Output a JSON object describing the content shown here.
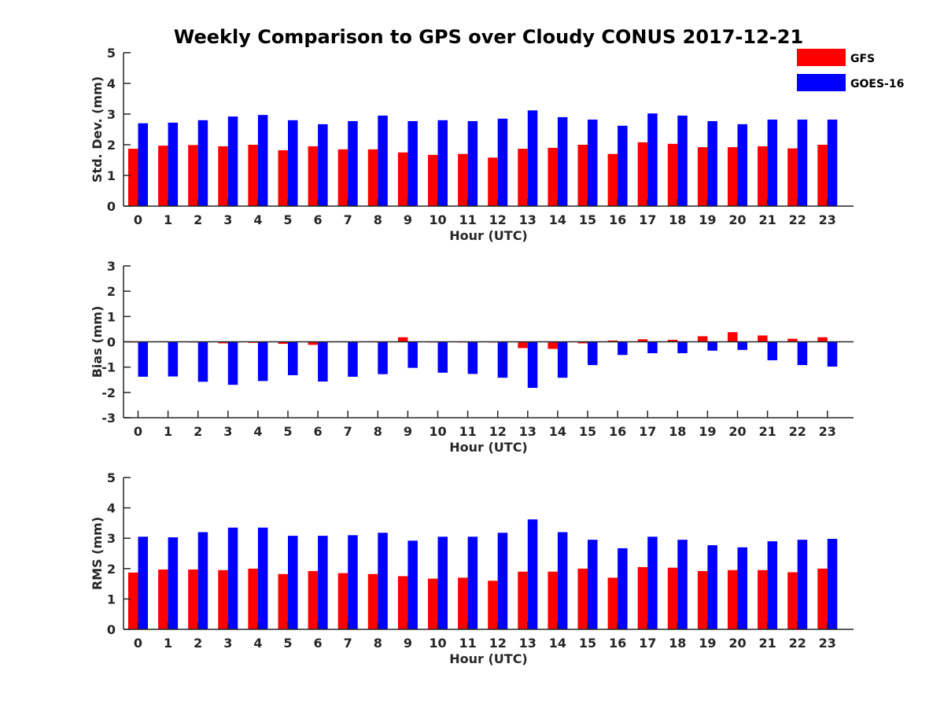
{
  "figure": {
    "title": "Weekly Comparison to GPS over Cloudy CONUS 2017-12-21"
  },
  "legend": {
    "placement": "top-right",
    "items": [
      {
        "label": "GFS",
        "color": "#ff0000"
      },
      {
        "label": "GOES-16",
        "color": "#0000ff"
      }
    ]
  },
  "chart_data": [
    {
      "type": "bar",
      "xlabel": "Hour (UTC)",
      "ylabel": "Std. Dev. (mm)",
      "ylim": [
        0,
        5
      ],
      "yticks": [
        0,
        1,
        2,
        3,
        4,
        5
      ],
      "grid": false,
      "categories": [
        "0",
        "1",
        "2",
        "3",
        "4",
        "5",
        "6",
        "7",
        "8",
        "9",
        "10",
        "11",
        "12",
        "13",
        "14",
        "15",
        "16",
        "17",
        "18",
        "19",
        "20",
        "21",
        "22",
        "23"
      ],
      "series": [
        {
          "name": "GFS",
          "color": "#ff0000",
          "values": [
            1.87,
            1.97,
            1.99,
            1.95,
            2.0,
            1.82,
            1.95,
            1.85,
            1.85,
            1.75,
            1.67,
            1.7,
            1.58,
            1.87,
            1.9,
            2.0,
            1.7,
            2.08,
            2.03,
            1.92,
            1.92,
            1.95,
            1.88,
            2.0
          ]
        },
        {
          "name": "GOES-16",
          "color": "#0000ff",
          "values": [
            2.7,
            2.72,
            2.8,
            2.92,
            2.97,
            2.8,
            2.67,
            2.77,
            2.95,
            2.77,
            2.8,
            2.77,
            2.85,
            3.12,
            2.9,
            2.82,
            2.62,
            3.02,
            2.95,
            2.77,
            2.67,
            2.82,
            2.82,
            2.82
          ]
        }
      ]
    },
    {
      "type": "bar",
      "xlabel": "Hour (UTC)",
      "ylabel": "Bias (mm)",
      "ylim": [
        -3,
        3
      ],
      "yticks": [
        -3,
        -2,
        -1,
        0,
        1,
        2,
        3
      ],
      "grid": false,
      "zero_line": true,
      "categories": [
        "0",
        "1",
        "2",
        "3",
        "4",
        "5",
        "6",
        "7",
        "8",
        "9",
        "10",
        "11",
        "12",
        "13",
        "14",
        "15",
        "16",
        "17",
        "18",
        "19",
        "20",
        "21",
        "22",
        "23"
      ],
      "series": [
        {
          "name": "GFS",
          "color": "#ff0000",
          "values": [
            -0.02,
            0.02,
            -0.02,
            -0.06,
            -0.04,
            -0.08,
            -0.12,
            0.02,
            0.02,
            0.18,
            0.0,
            0.0,
            0.0,
            -0.25,
            -0.28,
            -0.06,
            0.05,
            0.1,
            0.08,
            0.22,
            0.38,
            0.25,
            0.12,
            0.18
          ]
        },
        {
          "name": "GOES-16",
          "color": "#0000ff",
          "values": [
            -1.38,
            -1.37,
            -1.58,
            -1.7,
            -1.55,
            -1.32,
            -1.57,
            -1.38,
            -1.28,
            -1.03,
            -1.22,
            -1.27,
            -1.42,
            -1.82,
            -1.42,
            -0.92,
            -0.52,
            -0.45,
            -0.45,
            -0.35,
            -0.32,
            -0.73,
            -0.92,
            -0.98
          ]
        }
      ]
    },
    {
      "type": "bar",
      "xlabel": "Hour (UTC)",
      "ylabel": "RMS (mm)",
      "ylim": [
        0,
        5
      ],
      "yticks": [
        0,
        1,
        2,
        3,
        4,
        5
      ],
      "grid": false,
      "categories": [
        "0",
        "1",
        "2",
        "3",
        "4",
        "5",
        "6",
        "7",
        "8",
        "9",
        "10",
        "11",
        "12",
        "13",
        "14",
        "15",
        "16",
        "17",
        "18",
        "19",
        "20",
        "21",
        "22",
        "23"
      ],
      "series": [
        {
          "name": "GFS",
          "color": "#ff0000",
          "values": [
            1.87,
            1.97,
            1.97,
            1.95,
            2.0,
            1.82,
            1.92,
            1.85,
            1.82,
            1.75,
            1.67,
            1.7,
            1.6,
            1.9,
            1.9,
            2.0,
            1.7,
            2.05,
            2.03,
            1.92,
            1.95,
            1.95,
            1.88,
            2.0
          ]
        },
        {
          "name": "GOES-16",
          "color": "#0000ff",
          "values": [
            3.05,
            3.03,
            3.2,
            3.35,
            3.35,
            3.08,
            3.08,
            3.1,
            3.18,
            2.92,
            3.05,
            3.05,
            3.18,
            3.62,
            3.2,
            2.95,
            2.67,
            3.05,
            2.95,
            2.77,
            2.7,
            2.9,
            2.95,
            2.98
          ]
        }
      ]
    }
  ]
}
